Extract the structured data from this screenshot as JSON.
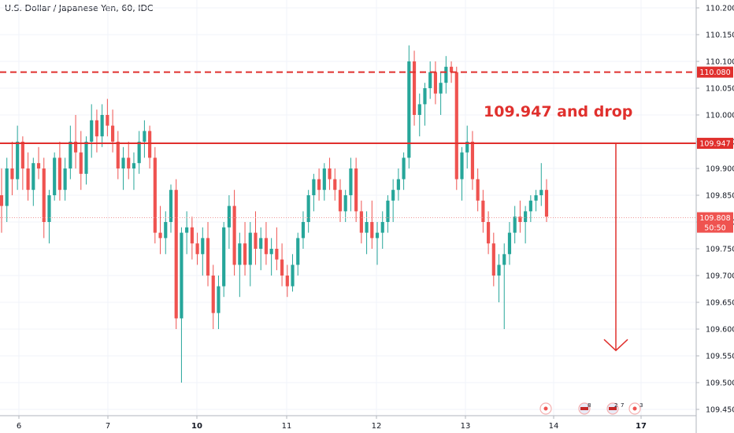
{
  "header": {
    "title": "U.S. Dollar / Japanese Yen, 60, IDC"
  },
  "colors": {
    "up": "#26a69a",
    "down": "#ef5350",
    "level": "#e0302d",
    "grid": "#f0f3fa",
    "axis_line": "#b2b5be",
    "current_line": "#ef9a9a"
  },
  "chart_data": {
    "type": "candlestick",
    "title": "U.S. Dollar / Japanese Yen, 60, IDC",
    "ylim": [
      109.43,
      110.235
    ],
    "y_ticks": [
      "110.200",
      "110.150",
      "110.100",
      "110.050",
      "110.000",
      "109.950",
      "109.900",
      "109.850",
      "109.800",
      "109.750",
      "109.700",
      "109.650",
      "109.600",
      "109.550",
      "109.500",
      "109.450"
    ],
    "x_ticks": [
      {
        "label": "6",
        "bold": false
      },
      {
        "label": "7",
        "bold": false
      },
      {
        "label": "10",
        "bold": true
      },
      {
        "label": "11",
        "bold": false
      },
      {
        "label": "12",
        "bold": false
      },
      {
        "label": "13",
        "bold": false
      },
      {
        "label": "14",
        "bold": false
      },
      {
        "label": "17",
        "bold": true
      }
    ],
    "levels": [
      {
        "value": 110.08,
        "label": "110.080",
        "style": "dashed"
      },
      {
        "value": 109.947,
        "label": "109.947",
        "style": "solid"
      }
    ],
    "current_price": {
      "value": 109.808,
      "label": "109.808",
      "countdown": "50:50"
    },
    "annotation": {
      "text": "109.947 and drop",
      "arrow_from": 109.947,
      "arrow_to": 109.56
    },
    "events": [
      {
        "text": ""
      },
      {
        "text": "8"
      },
      {
        "text": "2"
      },
      {
        "text": "7"
      },
      {
        "text": "3"
      }
    ],
    "ohlc": [
      [
        109.85,
        109.9,
        109.78,
        109.83
      ],
      [
        109.83,
        109.92,
        109.8,
        109.9
      ],
      [
        109.9,
        109.95,
        109.85,
        109.88
      ],
      [
        109.88,
        109.98,
        109.86,
        109.95
      ],
      [
        109.95,
        109.96,
        109.86,
        109.9
      ],
      [
        109.9,
        109.93,
        109.84,
        109.86
      ],
      [
        109.86,
        109.92,
        109.83,
        109.91
      ],
      [
        109.91,
        109.94,
        109.88,
        109.9
      ],
      [
        109.9,
        109.92,
        109.77,
        109.8
      ],
      [
        109.8,
        109.86,
        109.76,
        109.85
      ],
      [
        109.85,
        109.93,
        109.84,
        109.92
      ],
      [
        109.92,
        109.95,
        109.84,
        109.86
      ],
      [
        109.86,
        109.92,
        109.84,
        109.9
      ],
      [
        109.9,
        109.98,
        109.88,
        109.95
      ],
      [
        109.95,
        110.0,
        109.9,
        109.93
      ],
      [
        109.93,
        109.97,
        109.86,
        109.89
      ],
      [
        109.89,
        109.96,
        109.87,
        109.95
      ],
      [
        109.95,
        110.02,
        109.92,
        109.99
      ],
      [
        109.99,
        110.01,
        109.93,
        109.96
      ],
      [
        109.96,
        110.02,
        109.94,
        110.0
      ],
      [
        110.0,
        110.03,
        109.96,
        109.98
      ],
      [
        109.98,
        110.01,
        109.93,
        109.95
      ],
      [
        109.95,
        109.97,
        109.88,
        109.9
      ],
      [
        109.9,
        109.94,
        109.86,
        109.92
      ],
      [
        109.92,
        109.95,
        109.88,
        109.9
      ],
      [
        109.9,
        109.93,
        109.86,
        109.91
      ],
      [
        109.91,
        109.97,
        109.89,
        109.95
      ],
      [
        109.95,
        109.99,
        109.92,
        109.97
      ],
      [
        109.97,
        109.98,
        109.9,
        109.92
      ],
      [
        109.92,
        109.94,
        109.76,
        109.78
      ],
      [
        109.78,
        109.83,
        109.74,
        109.77
      ],
      [
        109.77,
        109.82,
        109.74,
        109.8
      ],
      [
        109.8,
        109.87,
        109.78,
        109.86
      ],
      [
        109.86,
        109.88,
        109.6,
        109.62
      ],
      [
        109.62,
        109.79,
        109.5,
        109.78
      ],
      [
        109.78,
        109.82,
        109.74,
        109.79
      ],
      [
        109.79,
        109.81,
        109.73,
        109.76
      ],
      [
        109.76,
        109.78,
        109.72,
        109.74
      ],
      [
        109.74,
        109.79,
        109.7,
        109.77
      ],
      [
        109.77,
        109.8,
        109.68,
        109.7
      ],
      [
        109.7,
        109.72,
        109.6,
        109.63
      ],
      [
        109.63,
        109.7,
        109.6,
        109.68
      ],
      [
        109.68,
        109.8,
        109.66,
        109.79
      ],
      [
        109.79,
        109.85,
        109.75,
        109.83
      ],
      [
        109.83,
        109.86,
        109.7,
        109.72
      ],
      [
        109.72,
        109.78,
        109.66,
        109.76
      ],
      [
        109.76,
        109.8,
        109.7,
        109.72
      ],
      [
        109.72,
        109.8,
        109.68,
        109.78
      ],
      [
        109.78,
        109.82,
        109.72,
        109.75
      ],
      [
        109.75,
        109.79,
        109.71,
        109.77
      ],
      [
        109.77,
        109.8,
        109.72,
        109.74
      ],
      [
        109.74,
        109.77,
        109.7,
        109.75
      ],
      [
        109.75,
        109.79,
        109.71,
        109.73
      ],
      [
        109.73,
        109.76,
        109.68,
        109.7
      ],
      [
        109.7,
        109.72,
        109.66,
        109.68
      ],
      [
        109.68,
        109.74,
        109.67,
        109.72
      ],
      [
        109.72,
        109.78,
        109.7,
        109.77
      ],
      [
        109.77,
        109.82,
        109.75,
        109.8
      ],
      [
        109.8,
        109.86,
        109.78,
        109.85
      ],
      [
        109.85,
        109.89,
        109.82,
        109.88
      ],
      [
        109.88,
        109.9,
        109.84,
        109.86
      ],
      [
        109.86,
        109.91,
        109.84,
        109.9
      ],
      [
        109.9,
        109.92,
        109.86,
        109.88
      ],
      [
        109.88,
        109.9,
        109.84,
        109.86
      ],
      [
        109.86,
        109.88,
        109.8,
        109.82
      ],
      [
        109.82,
        109.86,
        109.8,
        109.85
      ],
      [
        109.85,
        109.92,
        109.82,
        109.9
      ],
      [
        109.9,
        109.92,
        109.8,
        109.82
      ],
      [
        109.82,
        109.84,
        109.76,
        109.78
      ],
      [
        109.78,
        109.82,
        109.74,
        109.8
      ],
      [
        109.8,
        109.84,
        109.75,
        109.77
      ],
      [
        109.77,
        109.8,
        109.72,
        109.78
      ],
      [
        109.78,
        109.82,
        109.75,
        109.8
      ],
      [
        109.8,
        109.85,
        109.78,
        109.84
      ],
      [
        109.84,
        109.88,
        109.8,
        109.86
      ],
      [
        109.86,
        109.9,
        109.84,
        109.88
      ],
      [
        109.88,
        109.93,
        109.86,
        109.92
      ],
      [
        109.92,
        110.13,
        109.9,
        110.1
      ],
      [
        110.1,
        110.12,
        109.98,
        110.0
      ],
      [
        110.0,
        110.04,
        109.96,
        110.02
      ],
      [
        110.02,
        110.06,
        109.98,
        110.05
      ],
      [
        110.05,
        110.1,
        110.03,
        110.08
      ],
      [
        110.08,
        110.1,
        110.02,
        110.04
      ],
      [
        110.04,
        110.08,
        110.0,
        110.06
      ],
      [
        110.06,
        110.11,
        110.04,
        110.09
      ],
      [
        110.09,
        110.1,
        110.06,
        110.08
      ],
      [
        110.08,
        110.09,
        109.86,
        109.88
      ],
      [
        109.88,
        109.94,
        109.84,
        109.93
      ],
      [
        109.93,
        109.98,
        109.9,
        109.95
      ],
      [
        109.95,
        109.97,
        109.86,
        109.88
      ],
      [
        109.88,
        109.9,
        109.82,
        109.84
      ],
      [
        109.84,
        109.86,
        109.78,
        109.8
      ],
      [
        109.8,
        109.82,
        109.74,
        109.76
      ],
      [
        109.76,
        109.78,
        109.68,
        109.7
      ],
      [
        109.7,
        109.74,
        109.65,
        109.72
      ],
      [
        109.72,
        109.76,
        109.6,
        109.74
      ],
      [
        109.74,
        109.8,
        109.72,
        109.78
      ],
      [
        109.78,
        109.83,
        109.76,
        109.81
      ],
      [
        109.81,
        109.84,
        109.78,
        109.8
      ],
      [
        109.8,
        109.83,
        109.76,
        109.82
      ],
      [
        109.82,
        109.85,
        109.8,
        109.84
      ],
      [
        109.84,
        109.86,
        109.82,
        109.85
      ],
      [
        109.85,
        109.91,
        109.83,
        109.86
      ],
      [
        109.86,
        109.88,
        109.8,
        109.81
      ]
    ]
  }
}
